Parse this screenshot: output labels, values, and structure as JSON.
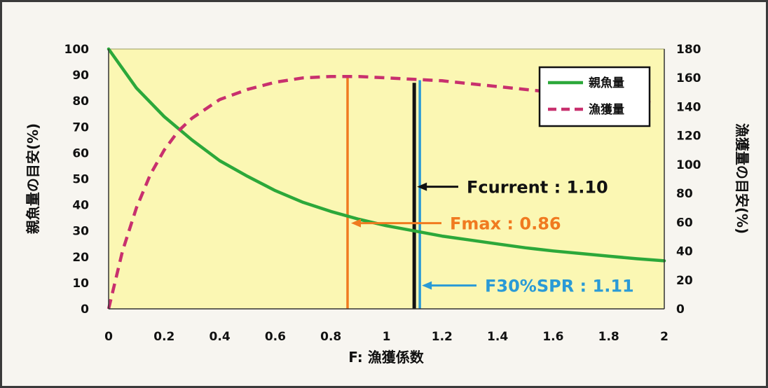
{
  "chart_data": {
    "type": "line",
    "xlabel": "F: 漁獲係数",
    "ylabel_left": "親魚量の目安(%)",
    "ylabel_right": "漁獲量の目安(%)",
    "xlim": [
      0,
      2
    ],
    "ylim_left": [
      0,
      100
    ],
    "ylim_right": [
      0,
      180
    ],
    "x_ticks": [
      "0",
      "0.2",
      "0.4",
      "0.6",
      "0.8",
      "1",
      "1.2",
      "1.4",
      "1.6",
      "1.8",
      "2"
    ],
    "y_left_ticks": [
      "0",
      "10",
      "20",
      "30",
      "40",
      "50",
      "60",
      "70",
      "80",
      "90",
      "100"
    ],
    "y_right_ticks": [
      "0",
      "20",
      "40",
      "60",
      "80",
      "100",
      "120",
      "140",
      "160",
      "180"
    ],
    "grid": false,
    "legend_position": "top-right",
    "series": [
      {
        "name": "親魚量",
        "axis": "left",
        "style": "solid",
        "color": "#2ca83a",
        "x": [
          0,
          0.1,
          0.2,
          0.3,
          0.4,
          0.5,
          0.6,
          0.7,
          0.8,
          0.9,
          1.0,
          1.1,
          1.2,
          1.3,
          1.4,
          1.5,
          1.6,
          1.7,
          1.8,
          1.9,
          2.0
        ],
        "y": [
          100,
          85,
          74,
          65,
          57,
          51,
          45.5,
          41,
          37.5,
          34.5,
          32,
          30,
          28,
          26.5,
          25,
          23.5,
          22.3,
          21.3,
          20.3,
          19.3,
          18.5
        ]
      },
      {
        "name": "漁獲量",
        "axis": "right",
        "style": "dashed",
        "color": "#c8306e",
        "x": [
          0,
          0.05,
          0.1,
          0.15,
          0.2,
          0.25,
          0.3,
          0.4,
          0.5,
          0.6,
          0.7,
          0.8,
          0.9,
          1.0,
          1.1,
          1.2,
          1.3,
          1.4,
          1.5,
          1.6,
          1.7,
          1.8,
          1.9,
          1.95
        ],
        "y": [
          0,
          40,
          70,
          93,
          110,
          123,
          132,
          145,
          152,
          157,
          160,
          161,
          161,
          160,
          159,
          158,
          156,
          154,
          152,
          150,
          148,
          146,
          144,
          143
        ]
      }
    ],
    "reference_lines": [
      {
        "label": "Fmax",
        "value": 0.86,
        "color": "#f07a20",
        "top_y_left": 90
      },
      {
        "label": "Fcurrent",
        "value": 1.1,
        "color": "#111111",
        "top_y_left": 87
      },
      {
        "label": "F30%SPR",
        "value": 1.11,
        "color": "#2a9ad6",
        "top_y_left": 88
      }
    ],
    "annotations": [
      {
        "text": "Fcurrent : 1.10",
        "color": "#111111",
        "arrow_to": "Fcurrent",
        "at_y_left": 47
      },
      {
        "text": "Fmax : 0.86",
        "color": "#f07a20",
        "arrow_to": "Fmax",
        "at_y_left": 33
      },
      {
        "text": "F30%SPR : 1.11",
        "color": "#2a9ad6",
        "arrow_to": "F30%SPR",
        "at_y_left": 9
      }
    ],
    "plot_background": "#fbf7b3"
  }
}
